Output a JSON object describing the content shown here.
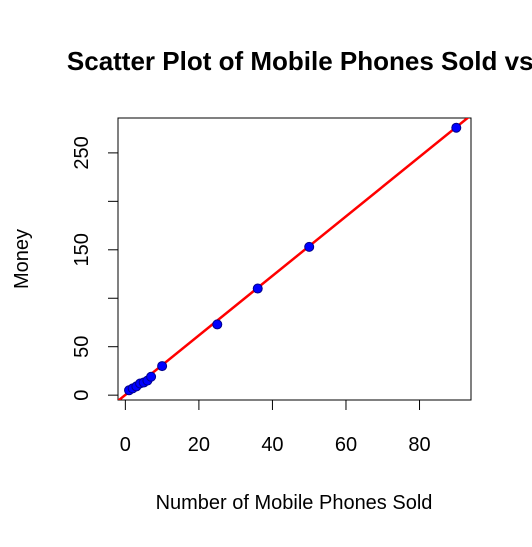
{
  "chart_data": {
    "type": "scatter",
    "title": "Scatter Plot of Mobile Phones Sold vs Money",
    "xlabel": "Number of Mobile Phones Sold",
    "ylabel": "Money",
    "xlim": [
      -2,
      94
    ],
    "ylim": [
      -5,
      286
    ],
    "xticks": [
      0,
      20,
      40,
      60,
      80
    ],
    "yticks": [
      0,
      50,
      150,
      250
    ],
    "yminor_ticks": [
      100,
      200
    ],
    "grid": false,
    "points": [
      {
        "x": 1,
        "y": 5
      },
      {
        "x": 2,
        "y": 7
      },
      {
        "x": 3,
        "y": 9
      },
      {
        "x": 4,
        "y": 12
      },
      {
        "x": 5,
        "y": 13
      },
      {
        "x": 6,
        "y": 15
      },
      {
        "x": 7,
        "y": 19
      },
      {
        "x": 10,
        "y": 30
      },
      {
        "x": 25,
        "y": 73
      },
      {
        "x": 36,
        "y": 110
      },
      {
        "x": 50,
        "y": 153
      },
      {
        "x": 90,
        "y": 276
      }
    ],
    "fit_line": {
      "slope": 3.07,
      "intercept": 0.3
    },
    "colors": {
      "points": "#0000ff",
      "point_outline": "#00008b",
      "fit_line": "#ff0000",
      "frame": "#000000"
    }
  }
}
